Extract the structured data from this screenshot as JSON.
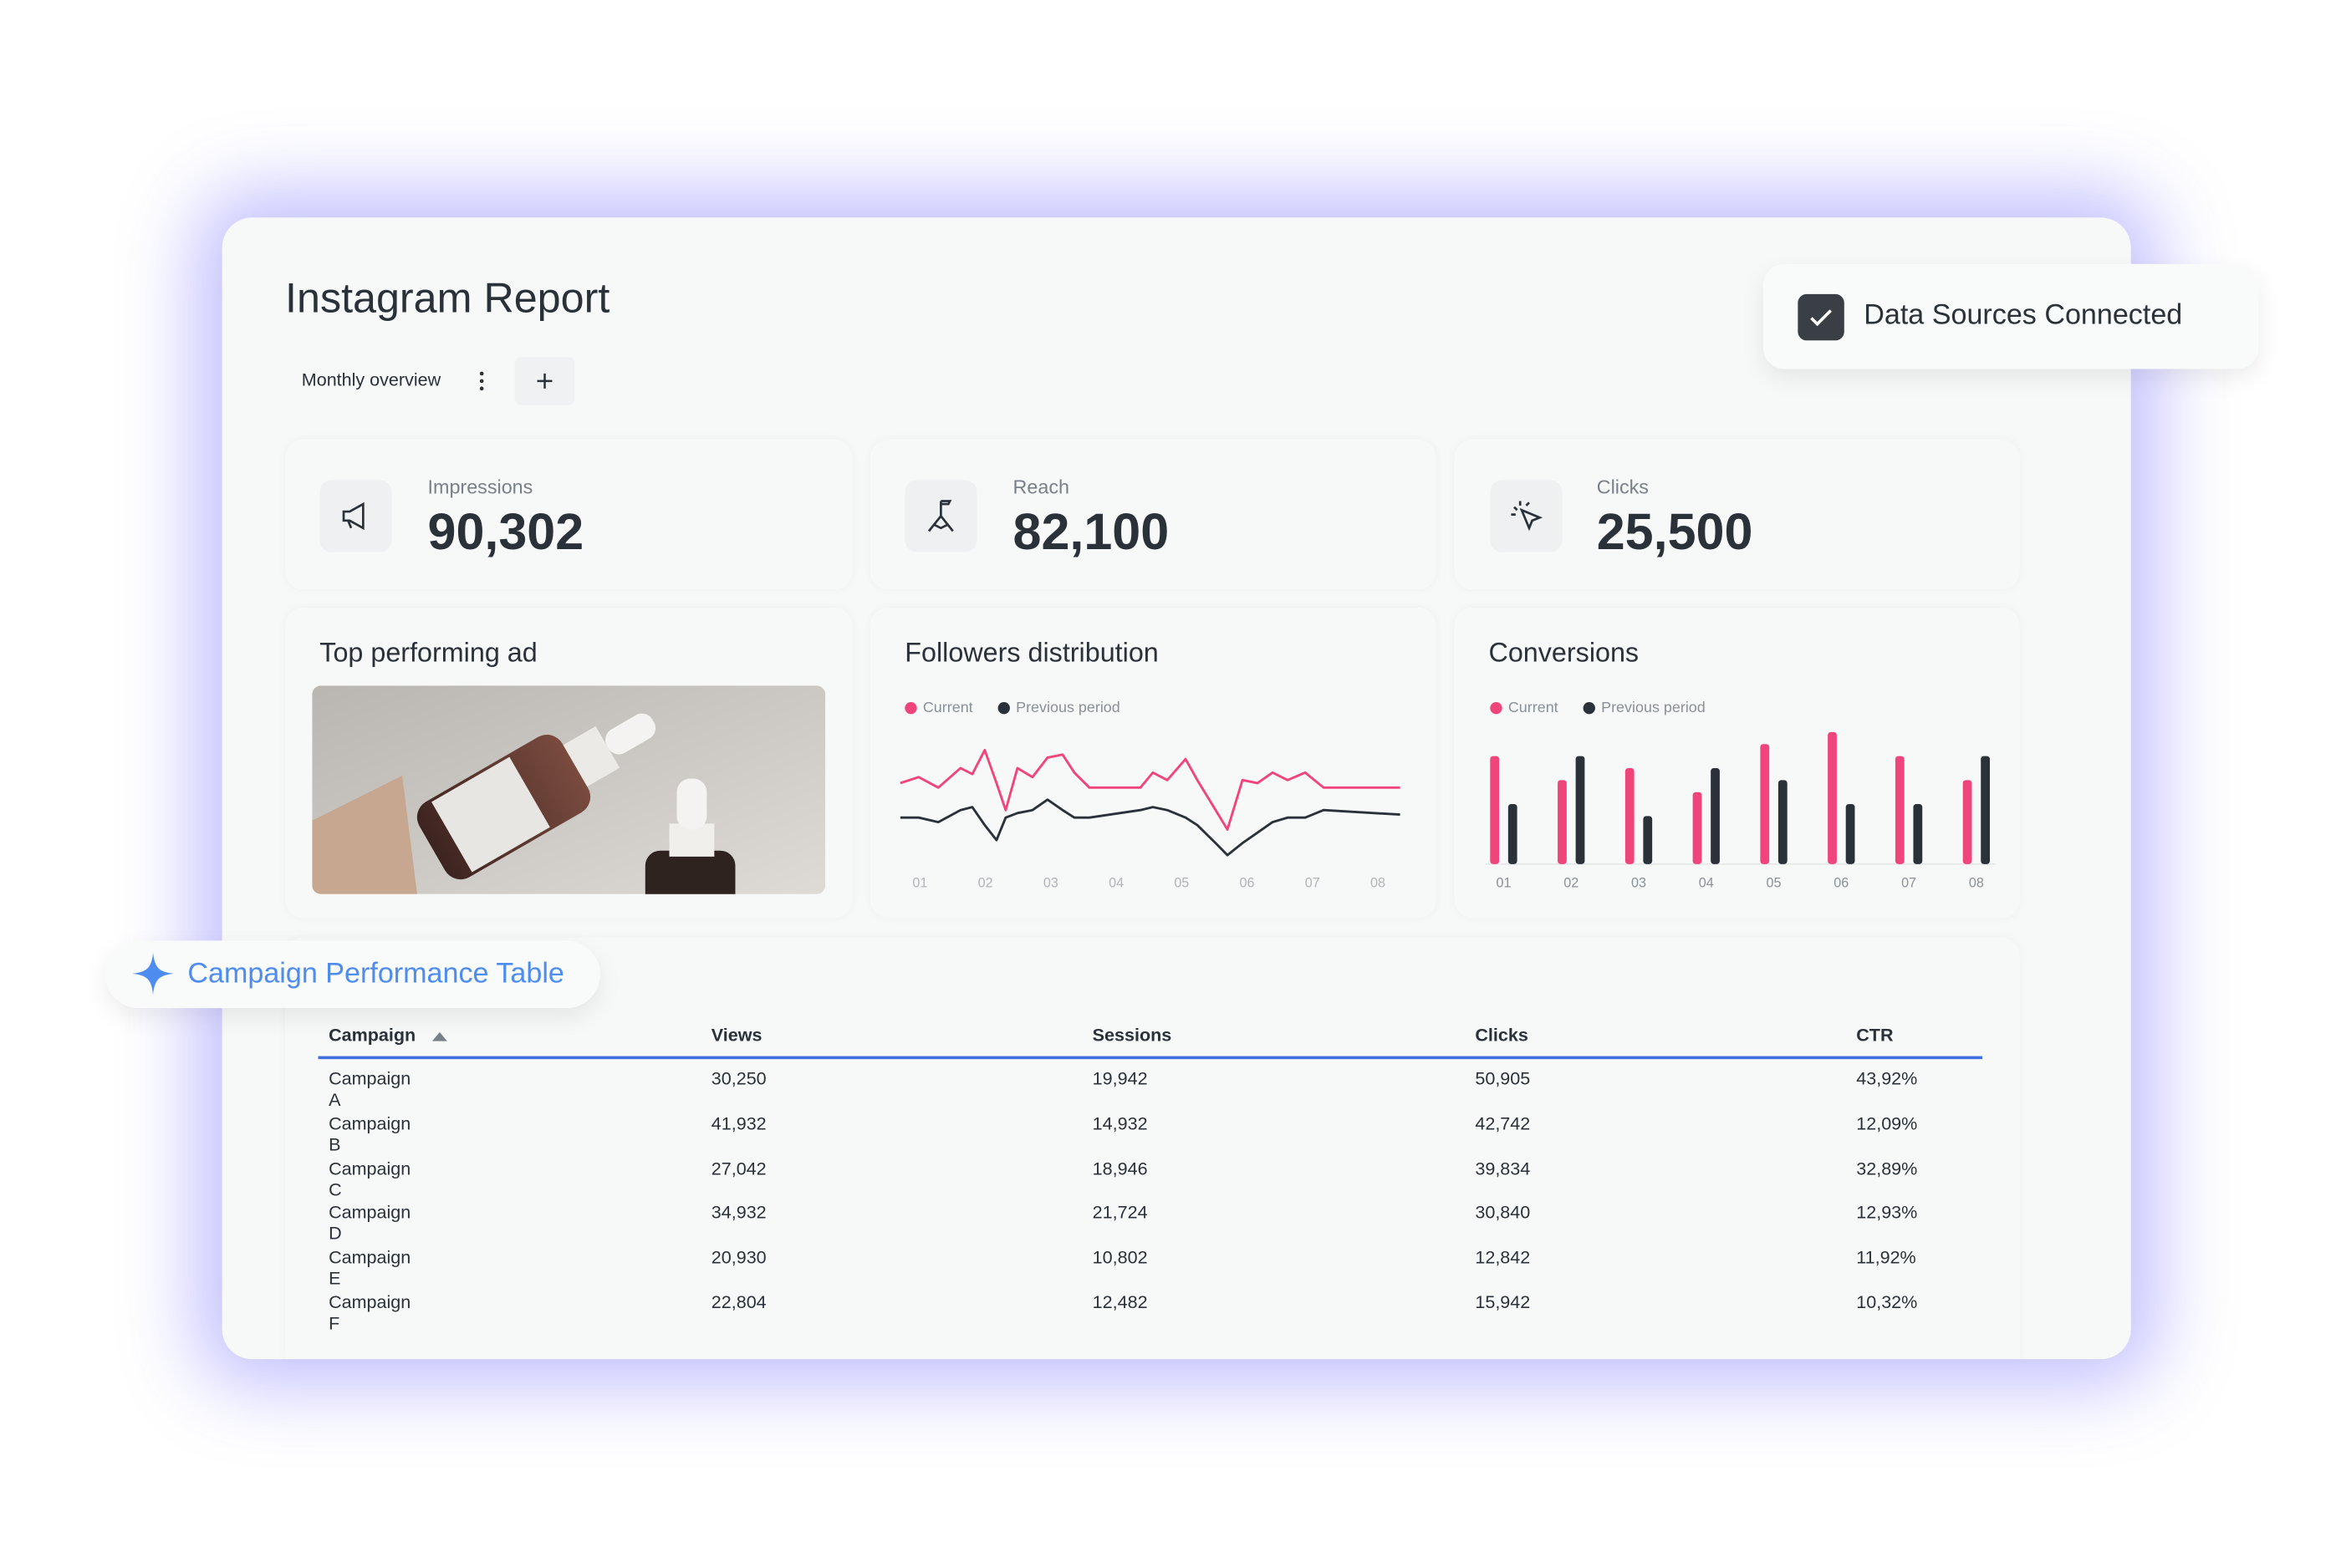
{
  "header": {
    "title": "Instagram Report",
    "tab": "Monthly overview"
  },
  "badge": "Data Sources Connected",
  "kpis": [
    {
      "label": "Impressions",
      "value": "90,302"
    },
    {
      "label": "Reach",
      "value": "82,100"
    },
    {
      "label": "Clicks",
      "value": "25,500"
    }
  ],
  "ad_card": {
    "title": "Top performing ad"
  },
  "chart_data": [
    {
      "type": "line",
      "title": "Followers distribution",
      "x": [
        0.7,
        0.98,
        1.28,
        1.62,
        1.8,
        1.99,
        2.17,
        2.31,
        2.49,
        2.72,
        2.95,
        3.18,
        3.36,
        3.59,
        4.37,
        4.56,
        4.78,
        5.06,
        5.24,
        5.52,
        5.7,
        5.93,
        6.16,
        6.39,
        6.62,
        6.89,
        7.17,
        8.34
      ],
      "xlim": [
        0.7,
        8.34
      ],
      "xticks": [
        {
          "value": 1,
          "label": "01"
        },
        {
          "value": 2,
          "label": "02"
        },
        {
          "value": 3,
          "label": "03"
        },
        {
          "value": 4,
          "label": "04"
        },
        {
          "value": 5,
          "label": "05"
        },
        {
          "value": 6,
          "label": "06"
        },
        {
          "value": 7,
          "label": "07"
        },
        {
          "value": 8,
          "label": "08"
        }
      ],
      "ylim": [
        0,
        100
      ],
      "series": [
        {
          "name": "Current",
          "color": "#f0457a",
          "values": [
            58,
            62,
            55,
            68,
            64,
            80,
            58,
            40,
            68,
            62,
            75,
            77,
            65,
            55,
            55,
            65,
            60,
            74,
            60,
            40,
            27,
            60,
            58,
            65,
            60,
            65,
            55,
            55
          ]
        },
        {
          "name": "Previous period",
          "color": "#2b3139",
          "values": [
            35,
            35,
            32,
            40,
            42,
            30,
            20,
            35,
            38,
            40,
            47,
            40,
            35,
            35,
            40,
            42,
            40,
            35,
            30,
            18,
            10,
            18,
            25,
            32,
            35,
            35,
            40,
            37
          ]
        }
      ]
    },
    {
      "type": "bar",
      "title": "Conversions",
      "categories": [
        "01",
        "02",
        "03",
        "04",
        "05",
        "06",
        "07",
        "08"
      ],
      "ylim": [
        0,
        100
      ],
      "series": [
        {
          "name": "Current",
          "color": "#f0457a",
          "values": [
            72,
            56,
            64,
            48,
            80,
            88,
            72,
            56
          ]
        },
        {
          "name": "Previous period",
          "color": "#2b3139",
          "values": [
            40,
            72,
            32,
            64,
            56,
            40,
            40,
            72
          ]
        }
      ]
    }
  ],
  "table": {
    "title": "Campaign Performance Table",
    "columns": [
      "Campaign",
      "Views",
      "Sessions",
      "Clicks",
      "CTR"
    ],
    "rows": [
      [
        "Campaign A",
        "30,250",
        "19,942",
        "50,905",
        "43,92%"
      ],
      [
        "Campaign B",
        "41,932",
        "14,932",
        "42,742",
        "12,09%"
      ],
      [
        "Campaign C",
        "27,042",
        "18,946",
        "39,834",
        "32,89%"
      ],
      [
        "Campaign D",
        "34,932",
        "21,724",
        "30,840",
        "12,93%"
      ],
      [
        "Campaign E",
        "20,930",
        "10,802",
        "12,842",
        "11,92%"
      ],
      [
        "Campaign F",
        "22,804",
        "12,482",
        "15,942",
        "10,32%"
      ]
    ]
  }
}
